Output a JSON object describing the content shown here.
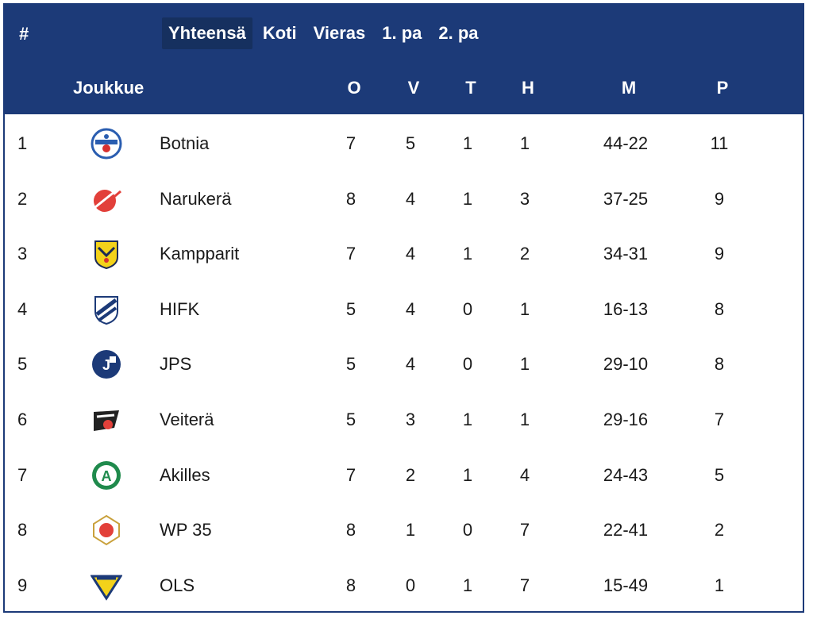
{
  "header": {
    "rank_label": "#",
    "tabs": [
      {
        "label": "Yhteensä",
        "active": true
      },
      {
        "label": "Koti",
        "active": false
      },
      {
        "label": "Vieras",
        "active": false
      },
      {
        "label": "1. pa",
        "active": false
      },
      {
        "label": "2. pa",
        "active": false
      }
    ],
    "columns": {
      "team": "Joukkue",
      "o": "O",
      "v": "V",
      "t": "T",
      "h": "H",
      "m": "M",
      "p": "P"
    }
  },
  "colors": {
    "header_bg": "#1c3a78",
    "active_tab_bg": "#16305f"
  },
  "rows": [
    {
      "rank": "1",
      "team": "Botnia",
      "logo": "botnia-logo",
      "o": "7",
      "v": "5",
      "t": "1",
      "h": "1",
      "m": "44-22",
      "p": "11"
    },
    {
      "rank": "2",
      "team": "Narukerä",
      "logo": "narukera-logo",
      "o": "8",
      "v": "4",
      "t": "1",
      "h": "3",
      "m": "37-25",
      "p": "9"
    },
    {
      "rank": "3",
      "team": "Kampparit",
      "logo": "kampparit-logo",
      "o": "7",
      "v": "4",
      "t": "1",
      "h": "2",
      "m": "34-31",
      "p": "9"
    },
    {
      "rank": "4",
      "team": "HIFK",
      "logo": "hifk-logo",
      "o": "5",
      "v": "4",
      "t": "0",
      "h": "1",
      "m": "16-13",
      "p": "8"
    },
    {
      "rank": "5",
      "team": "JPS",
      "logo": "jps-logo",
      "o": "5",
      "v": "4",
      "t": "0",
      "h": "1",
      "m": "29-10",
      "p": "8"
    },
    {
      "rank": "6",
      "team": "Veiterä",
      "logo": "veitera-logo",
      "o": "5",
      "v": "3",
      "t": "1",
      "h": "1",
      "m": "29-16",
      "p": "7"
    },
    {
      "rank": "7",
      "team": "Akilles",
      "logo": "akilles-logo",
      "o": "7",
      "v": "2",
      "t": "1",
      "h": "4",
      "m": "24-43",
      "p": "5"
    },
    {
      "rank": "8",
      "team": "WP 35",
      "logo": "wp35-logo",
      "o": "8",
      "v": "1",
      "t": "0",
      "h": "7",
      "m": "22-41",
      "p": "2"
    },
    {
      "rank": "9",
      "team": "OLS",
      "logo": "ols-logo",
      "o": "8",
      "v": "0",
      "t": "1",
      "h": "7",
      "m": "15-49",
      "p": "1"
    }
  ]
}
